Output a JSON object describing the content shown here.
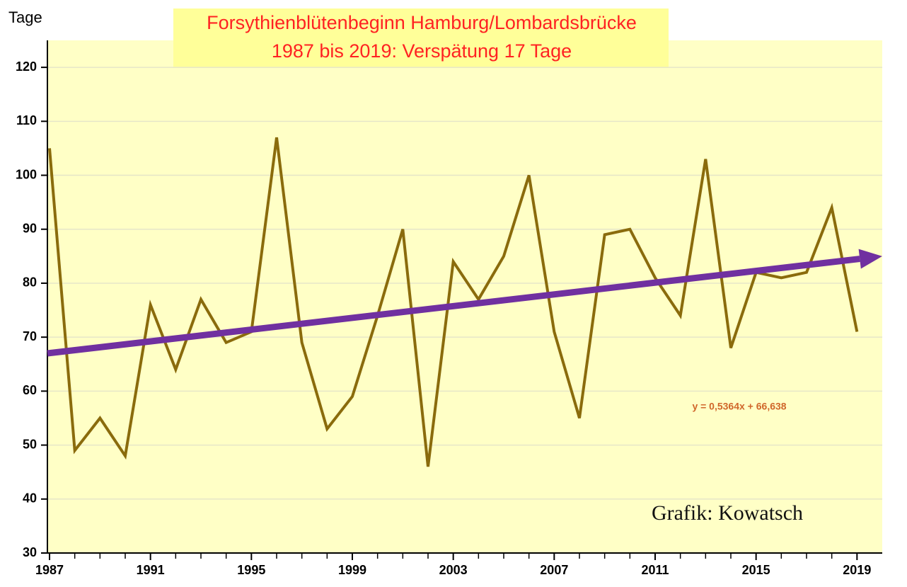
{
  "chart_data": {
    "type": "line",
    "title": "Forsythienblütenbeginn Hamburg/Lombardsbrücke",
    "subtitle": "1987 bis 2019: Verspätung 17 Tage",
    "y_label": "Tage",
    "x": [
      1987,
      1988,
      1989,
      1990,
      1991,
      1992,
      1993,
      1994,
      1995,
      1996,
      1997,
      1998,
      1999,
      2000,
      2001,
      2002,
      2003,
      2004,
      2005,
      2006,
      2007,
      2008,
      2009,
      2010,
      2011,
      2012,
      2013,
      2014,
      2015,
      2016,
      2017,
      2018,
      2019
    ],
    "series": [
      {
        "color": "#8a6b0c",
        "values": [
          105,
          49,
          55,
          48,
          76,
          64,
          77,
          69,
          71,
          107,
          69,
          53,
          59,
          74,
          90,
          46,
          84,
          77,
          85,
          100,
          71,
          55,
          89,
          90,
          81,
          74,
          103,
          68,
          82,
          81,
          82,
          94,
          71
        ]
      }
    ],
    "trendline": {
      "color": "#7030a0",
      "x": [
        1987,
        2020
      ],
      "values": [
        67,
        85
      ]
    },
    "annotations": [
      "y = 0,5364x + 66,638",
      "Grafik: Kowatsch"
    ],
    "xlim": [
      1987,
      2020
    ],
    "ylim": [
      30,
      125
    ],
    "xticks": [
      1987,
      1991,
      1995,
      1999,
      2003,
      2007,
      2011,
      2015,
      2019
    ],
    "x_minor_ticks": [
      1988,
      1989,
      1990,
      1992,
      1993,
      1994,
      1996,
      1997,
      1998,
      2000,
      2001,
      2002,
      2004,
      2005,
      2006,
      2008,
      2009,
      2010,
      2012,
      2013,
      2014,
      2016,
      2017,
      2018
    ],
    "yticks": [
      30,
      40,
      50,
      60,
      70,
      80,
      90,
      100,
      110,
      120
    ],
    "grid": true
  }
}
